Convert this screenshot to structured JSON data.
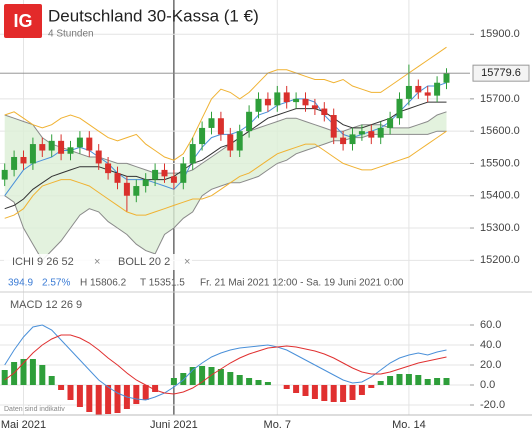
{
  "chart_data": [
    {
      "type": "candlestick",
      "title": "Deutschland 30-Kassa (1 €)",
      "subtitle": "4 Stunden",
      "logo": "IG",
      "open": [
        15450,
        15480,
        15520,
        15500,
        15560,
        15540,
        15570,
        15530,
        15550,
        15580,
        15540,
        15500,
        15470,
        15440,
        15400,
        15430,
        15450,
        15480,
        15460,
        15440,
        15500,
        15560,
        15610,
        15640,
        15590,
        15540,
        15600,
        15660,
        15700,
        15680,
        15720,
        15690,
        15700,
        15680,
        15670,
        15650,
        15580,
        15560,
        15590,
        15600,
        15580,
        15610,
        15640,
        15700,
        15740,
        15720,
        15710,
        15750
      ],
      "high": [
        15500,
        15540,
        15540,
        15580,
        15580,
        15590,
        15590,
        15570,
        15600,
        15600,
        15560,
        15520,
        15490,
        15460,
        15450,
        15470,
        15500,
        15500,
        15480,
        15520,
        15580,
        15630,
        15660,
        15660,
        15610,
        15620,
        15680,
        15720,
        15720,
        15740,
        15740,
        15720,
        15720,
        15700,
        15690,
        15670,
        15600,
        15610,
        15620,
        15620,
        15630,
        15660,
        15720,
        15806.2,
        15760,
        15740,
        15770,
        15795
      ],
      "low": [
        15430,
        15460,
        15480,
        15480,
        15520,
        15520,
        15510,
        15510,
        15530,
        15520,
        15480,
        15450,
        15420,
        15351.5,
        15380,
        15410,
        15430,
        15440,
        15420,
        15420,
        15480,
        15540,
        15590,
        15570,
        15520,
        15520,
        15580,
        15640,
        15660,
        15660,
        15670,
        15670,
        15660,
        15650,
        15630,
        15560,
        15540,
        15540,
        15570,
        15560,
        15560,
        15590,
        15620,
        15680,
        15700,
        15690,
        15690,
        15730
      ],
      "close": [
        15480,
        15520,
        15500,
        15560,
        15540,
        15570,
        15530,
        15550,
        15580,
        15540,
        15500,
        15470,
        15440,
        15400,
        15430,
        15450,
        15480,
        15460,
        15440,
        15500,
        15560,
        15610,
        15640,
        15590,
        15540,
        15600,
        15660,
        15700,
        15680,
        15720,
        15690,
        15700,
        15680,
        15670,
        15650,
        15580,
        15560,
        15590,
        15600,
        15580,
        15610,
        15640,
        15700,
        15740,
        15720,
        15710,
        15750,
        15779.6
      ],
      "up_color": "#2e9e3a",
      "down_color": "#d9302c",
      "series": [
        {
          "color": "#f0b232",
          "values": [
            15650,
            15660,
            15640,
            15620,
            15610,
            15620,
            15640,
            15650,
            15640,
            15620,
            15600,
            15580,
            15570,
            15580,
            15590,
            15560,
            15540,
            15520,
            15510,
            15530,
            15580,
            15640,
            15700,
            15730,
            15720,
            15700,
            15720,
            15750,
            15780,
            15790,
            15790,
            15780,
            15770,
            15760,
            15760,
            15750,
            15760,
            15740,
            15730,
            15720,
            15720,
            15740,
            15760,
            15780,
            15800,
            15820,
            15840,
            15860
          ]
        },
        {
          "color": "#f0b232",
          "values": [
            15330,
            15340,
            15360,
            15400,
            15430,
            15440,
            15450,
            15450,
            15440,
            15430,
            15410,
            15390,
            15370,
            15350,
            15340,
            15340,
            15350,
            15360,
            15370,
            15380,
            15390,
            15390,
            15400,
            15420,
            15440,
            15460,
            15470,
            15490,
            15510,
            15530,
            15540,
            15550,
            15560,
            15560,
            15540,
            15520,
            15500,
            15490,
            15480,
            15480,
            15490,
            15500,
            15510,
            15520,
            15540,
            15560,
            15580,
            15600
          ]
        },
        {
          "color": "#4a90d9",
          "values": [
            15400,
            15440,
            15480,
            15500,
            15510,
            15520,
            15540,
            15540,
            15550,
            15540,
            15520,
            15500,
            15470,
            15450,
            15450,
            15450,
            15440,
            15430,
            15420,
            15450,
            15510,
            15550,
            15580,
            15590,
            15590,
            15600,
            15620,
            15650,
            15660,
            15680,
            15690,
            15700,
            15700,
            15690,
            15650,
            15620,
            15590,
            15580,
            15590,
            15600,
            15610,
            15630,
            15660,
            15690,
            15720,
            15740,
            15740,
            15750
          ]
        },
        {
          "color": "#333333",
          "values": [
            15360,
            15370,
            15390,
            15420,
            15440,
            15460,
            15470,
            15480,
            15490,
            15490,
            15490,
            15480,
            15470,
            15460,
            15460,
            15450,
            15450,
            15450,
            15460,
            15480,
            15500,
            15510,
            15530,
            15550,
            15560,
            15580,
            15600,
            15620,
            15640,
            15650,
            15660,
            15670,
            15670,
            15670,
            15660,
            15640,
            15620,
            15610,
            15610,
            15620,
            15630,
            15640,
            15660,
            15670,
            15680,
            15690,
            15690,
            15690
          ]
        }
      ],
      "cloud": {
        "color": "#dcefd6",
        "line_color": "#8a8a8a",
        "span_a": [
          15650,
          15640,
          15630,
          15620,
          15580,
          15560,
          15550,
          15540,
          15530,
          15520,
          15520,
          15510,
          15500,
          15500,
          15490,
          15480,
          15470,
          15470,
          15470,
          15470,
          15480,
          15500,
          15520,
          15540,
          15560,
          15580,
          15600,
          15610,
          15620,
          15630,
          15640,
          15640,
          15630,
          15620,
          15610,
          15600,
          15600,
          15610,
          15620,
          15620,
          15620,
          15610,
          15610,
          15610,
          15620,
          15630,
          15650,
          15660
        ],
        "span_b": [
          15400,
          15380,
          15300,
          15250,
          15200,
          15230,
          15260,
          15300,
          15340,
          15360,
          15350,
          15320,
          15300,
          15280,
          15250,
          15230,
          15220,
          15280,
          15300,
          15330,
          15350,
          15400,
          15420,
          15430,
          15440,
          15440,
          15450,
          15460,
          15480,
          15500,
          15510,
          15530,
          15540,
          15550,
          15560,
          15570,
          15570,
          15580,
          15580,
          15590,
          15590,
          15590,
          15590,
          15590,
          15590,
          15590,
          15600,
          15600
        ]
      },
      "last_price": 15779.6,
      "ylim": [
        15170,
        16000
      ],
      "yticks": [
        {
          "value": 15900,
          "label": "15900.0"
        },
        {
          "value": 15700,
          "label": "15700.0"
        },
        {
          "value": 15600,
          "label": "15600.0"
        },
        {
          "value": 15500,
          "label": "15500.0"
        },
        {
          "value": 15400,
          "label": "15400.0"
        },
        {
          "value": 15300,
          "label": "15300.0"
        },
        {
          "value": 15200,
          "label": "15200.0"
        }
      ],
      "grid": true,
      "indicators": [
        "ICHI 9 26 52",
        "BOLL 20 2"
      ],
      "info": [
        "394.9",
        "2.57%",
        "H 15806.2",
        "T 15351.5",
        "Fr. 21 Mai 2021 12:00 - Sa. 19 Juni 2021 0:00"
      ]
    },
    {
      "type": "macd",
      "title": "MACD 12 26 9",
      "note": "Daten sind indikativ",
      "categories": [
        null,
        null,
        "Mai 2021",
        null,
        null,
        null,
        null,
        null,
        null,
        null,
        null,
        null,
        null,
        null,
        null,
        null,
        null,
        null,
        "Juni 2021",
        null,
        null,
        null,
        null,
        null,
        null,
        null,
        null,
        null,
        null,
        "Mo. 7",
        null,
        null,
        null,
        null,
        null,
        null,
        null,
        null,
        null,
        null,
        null,
        null,
        null,
        "Mo. 14",
        null,
        null,
        null,
        null
      ],
      "series": [
        {
          "color": "#4a90d9",
          "values": [
            20,
            35,
            48,
            58,
            60,
            55,
            45,
            35,
            25,
            15,
            5,
            -2,
            -8,
            -12,
            -14,
            -15,
            -12,
            -8,
            -2,
            5,
            15,
            22,
            28,
            32,
            35,
            37,
            38,
            39,
            40,
            38,
            35,
            30,
            25,
            20,
            15,
            10,
            5,
            2,
            3,
            8,
            15,
            22,
            27,
            30,
            32,
            30,
            33,
            35
          ]
        },
        {
          "color": "#e03030",
          "values": [
            5,
            12,
            22,
            32,
            40,
            46,
            50,
            50,
            47,
            42,
            35,
            27,
            20,
            12,
            5,
            0,
            -5,
            -8,
            -9,
            -7,
            -3,
            3,
            10,
            16,
            22,
            27,
            31,
            34,
            37,
            38,
            39,
            38,
            36,
            34,
            31,
            27,
            22,
            17,
            13,
            11,
            11,
            13,
            16,
            19,
            22,
            24,
            26,
            28
          ]
        }
      ],
      "histogram": {
        "up_color": "#2e9e3a",
        "down_color": "#e03030",
        "values": [
          15,
          23,
          26,
          26,
          20,
          9,
          -5,
          -15,
          -22,
          -27,
          -30,
          -29,
          -28,
          -24,
          -19,
          -15,
          -7,
          0,
          7,
          12,
          18,
          19,
          18,
          16,
          13,
          10,
          7,
          5,
          3,
          0,
          -4,
          -8,
          -11,
          -14,
          -16,
          -17,
          -17,
          -15,
          -10,
          -3,
          4,
          9,
          11,
          11,
          10,
          6,
          7,
          7
        ]
      },
      "ylim": [
        -30,
        90
      ],
      "yticks": [
        {
          "value": 60,
          "label": "60.0"
        },
        {
          "value": 40,
          "label": "40.0"
        },
        {
          "value": 20,
          "label": "20.0"
        },
        {
          "value": 0,
          "label": "0.0"
        },
        {
          "value": -20,
          "label": "-20.0"
        }
      ],
      "grid": true
    }
  ]
}
